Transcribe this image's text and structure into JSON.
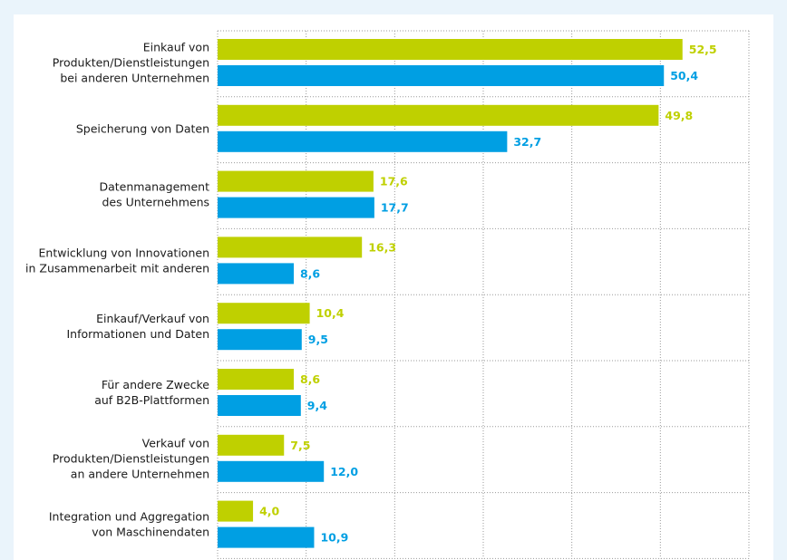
{
  "chart_data": {
    "type": "bar",
    "orientation": "horizontal",
    "title": "",
    "xlabel": "",
    "ylabel": "",
    "xlim": [
      0,
      60
    ],
    "grid": true,
    "legend": "none",
    "decimal_separator": ",",
    "categories": [
      [
        "Einkauf von",
        "Produkten/Dienstleistungen",
        "bei anderen Unternehmen"
      ],
      [
        "Speicherung von Daten"
      ],
      [
        "Datenmanagement",
        "des Unternehmens"
      ],
      [
        "Entwicklung von Innovationen",
        "in Zusammenarbeit mit anderen"
      ],
      [
        "Einkauf/Verkauf von",
        "Informationen und Daten"
      ],
      [
        "Für andere Zwecke",
        "auf B2B-Plattformen"
      ],
      [
        "Verkauf von",
        "Produkten/Dienstleistungen",
        "an andere Unternehmen"
      ],
      [
        "Integration und Aggregation",
        "von Maschinendaten"
      ]
    ],
    "series": [
      {
        "name": "series-green",
        "color": "#bfd000",
        "values": [
          52.5,
          49.8,
          17.6,
          16.3,
          10.4,
          8.6,
          7.5,
          4.0
        ],
        "labels": [
          "52,5",
          "49,8",
          "17,6",
          "16,3",
          "10,4",
          "8,6",
          "7,5",
          "4,0"
        ]
      },
      {
        "name": "series-blue",
        "color": "#009fe3",
        "values": [
          50.4,
          32.7,
          17.7,
          8.6,
          9.5,
          9.4,
          12.0,
          10.9
        ],
        "labels": [
          "50,4",
          "32,7",
          "17,7",
          "8,6",
          "9,5",
          "9,4",
          "12,0",
          "10,9"
        ]
      }
    ]
  }
}
